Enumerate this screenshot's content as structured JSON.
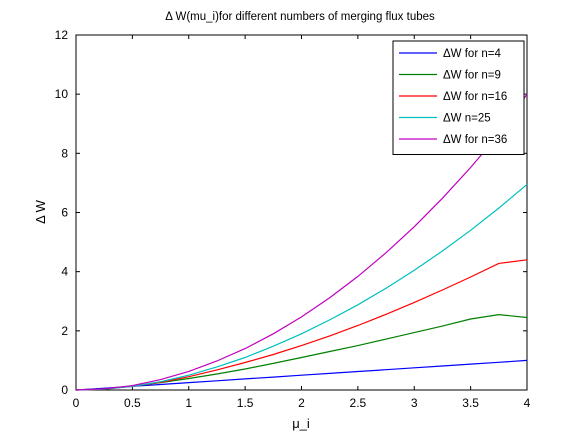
{
  "chart_data": {
    "type": "line",
    "title": "Δ W(mu_i)for different numbers of merging flux tubes",
    "xlabel": "μ_i",
    "ylabel": "Δ W",
    "xlim": [
      0,
      4
    ],
    "ylim": [
      0,
      12
    ],
    "xticks": [
      0,
      0.5,
      1,
      1.5,
      2,
      2.5,
      3,
      3.5,
      4
    ],
    "xtick_labels": [
      "0",
      "0.5",
      "1",
      "1.5",
      "2",
      "2.5",
      "3",
      "3.5",
      "4"
    ],
    "yticks": [
      0,
      2,
      4,
      6,
      8,
      10,
      12
    ],
    "ytick_labels": [
      "0",
      "2",
      "4",
      "6",
      "8",
      "10",
      "12"
    ],
    "grid": false,
    "legend_position": "top-right",
    "x": [
      0,
      0.25,
      0.5,
      0.75,
      1,
      1.25,
      1.5,
      1.75,
      2,
      2.25,
      2.5,
      2.75,
      3,
      3.25,
      3.5,
      3.75,
      4
    ],
    "series": [
      {
        "name": "ΔW for n=4",
        "color": "#0000ff",
        "values": [
          0,
          0.0625,
          0.125,
          0.1875,
          0.25,
          0.3125,
          0.375,
          0.4375,
          0.5,
          0.5625,
          0.625,
          0.6875,
          0.75,
          0.8125,
          0.875,
          0.9375,
          1.0
        ]
      },
      {
        "name": "ΔW for n=9",
        "color": "#008000",
        "values": [
          0,
          0.04,
          0.13,
          0.25,
          0.39,
          0.54,
          0.71,
          0.9,
          1.1,
          1.3,
          1.5,
          1.72,
          1.94,
          2.16,
          2.4,
          2.55,
          2.45
        ]
      },
      {
        "name": "ΔW for n=16",
        "color": "#ff0000",
        "values": [
          0,
          0.03,
          0.12,
          0.26,
          0.45,
          0.68,
          0.93,
          1.2,
          1.5,
          1.83,
          2.18,
          2.56,
          2.96,
          3.38,
          3.82,
          4.28,
          4.4
        ]
      },
      {
        "name": "ΔW n=25",
        "color": "#00bfbf",
        "values": [
          0,
          0.03,
          0.12,
          0.28,
          0.5,
          0.78,
          1.1,
          1.48,
          1.9,
          2.37,
          2.88,
          3.44,
          4.05,
          4.7,
          5.4,
          6.15,
          6.95
        ]
      },
      {
        "name": "ΔW for n=36",
        "color": "#bf00bf",
        "values": [
          0,
          0.04,
          0.15,
          0.35,
          0.63,
          0.98,
          1.4,
          1.9,
          2.47,
          3.12,
          3.84,
          4.64,
          5.52,
          6.48,
          7.52,
          8.64,
          10.0
        ]
      }
    ]
  }
}
